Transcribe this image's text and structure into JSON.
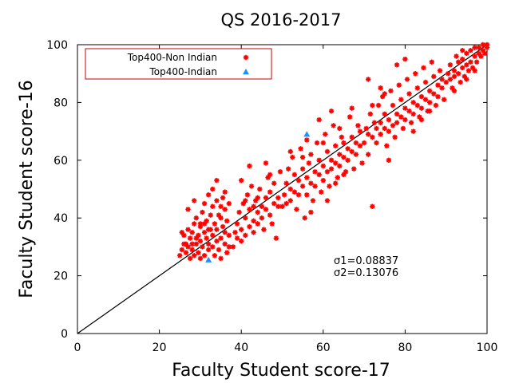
{
  "chart_data": {
    "type": "scatter",
    "title": "QS 2016-2017",
    "xlabel": "Faculty Student score-17",
    "ylabel": "Faculty Student score-16",
    "xlim": [
      0,
      100
    ],
    "ylim": [
      0,
      100
    ],
    "xticks": [
      0,
      20,
      40,
      60,
      80,
      100
    ],
    "yticks": [
      0,
      20,
      40,
      60,
      80,
      100
    ],
    "grid": false,
    "legend_position": "top-left",
    "reference_line": {
      "from": [
        0,
        0
      ],
      "to": [
        100,
        100
      ],
      "color": "#000000"
    },
    "annotations": [
      "σ1=0.08837",
      "σ2=0.13076"
    ],
    "series": [
      {
        "name": "Top400-Non Indian",
        "marker": "star",
        "color": "#ff0000",
        "points": [
          [
            25,
            27
          ],
          [
            25.5,
            29
          ],
          [
            26,
            31
          ],
          [
            26,
            34
          ],
          [
            26.5,
            28
          ],
          [
            27,
            30
          ],
          [
            27,
            36
          ],
          [
            27.5,
            26
          ],
          [
            27.5,
            33
          ],
          [
            28,
            35
          ],
          [
            28,
            29
          ],
          [
            28.5,
            38
          ],
          [
            28.5,
            27
          ],
          [
            29,
            31
          ],
          [
            29,
            40
          ],
          [
            29.5,
            34
          ],
          [
            29.5,
            28
          ],
          [
            30,
            32
          ],
          [
            30,
            26
          ],
          [
            30,
            37
          ],
          [
            30.5,
            42
          ],
          [
            30.5,
            30
          ],
          [
            31,
            35
          ],
          [
            31,
            27
          ],
          [
            31,
            45
          ],
          [
            31.5,
            33
          ],
          [
            31.5,
            39
          ],
          [
            32,
            29
          ],
          [
            32,
            31
          ],
          [
            32,
            48
          ],
          [
            32.5,
            36
          ],
          [
            32.5,
            41
          ],
          [
            33,
            30
          ],
          [
            33,
            34
          ],
          [
            33,
            44
          ],
          [
            33.5,
            27
          ],
          [
            33.5,
            38
          ],
          [
            34,
            32
          ],
          [
            34,
            36
          ],
          [
            34,
            46
          ],
          [
            34.5,
            29
          ],
          [
            34.5,
            41
          ],
          [
            35,
            33
          ],
          [
            35,
            40
          ],
          [
            35,
            26
          ],
          [
            35.5,
            37
          ],
          [
            35.5,
            47
          ],
          [
            36,
            31
          ],
          [
            36,
            35
          ],
          [
            36,
            43
          ],
          [
            36.5,
            28
          ],
          [
            36.5,
            39
          ],
          [
            37,
            34
          ],
          [
            37,
            45
          ],
          [
            37,
            30
          ],
          [
            27,
            43
          ],
          [
            28.5,
            46
          ],
          [
            33,
            50
          ],
          [
            34,
            53
          ],
          [
            30,
            38
          ],
          [
            26.5,
            31
          ],
          [
            25.5,
            35
          ],
          [
            32,
            36
          ],
          [
            31,
            38
          ],
          [
            29,
            33
          ],
          [
            28,
            31
          ],
          [
            36,
            49
          ],
          [
            35,
            44
          ],
          [
            38,
            30
          ],
          [
            38.5,
            35
          ],
          [
            39,
            38
          ],
          [
            39,
            33
          ],
          [
            39.5,
            42
          ],
          [
            40,
            36
          ],
          [
            40,
            32
          ],
          [
            40.5,
            45
          ],
          [
            41,
            40
          ],
          [
            41,
            34
          ],
          [
            41.5,
            48
          ],
          [
            42,
            37
          ],
          [
            42,
            43
          ],
          [
            42.5,
            51
          ],
          [
            43,
            39
          ],
          [
            43,
            35
          ],
          [
            43.5,
            46
          ],
          [
            44,
            42
          ],
          [
            44,
            38
          ],
          [
            44.5,
            50
          ],
          [
            45,
            44
          ],
          [
            45,
            40
          ],
          [
            45.5,
            36
          ],
          [
            46,
            47
          ],
          [
            46,
            43
          ],
          [
            46.5,
            54
          ],
          [
            47,
            41
          ],
          [
            47,
            49
          ],
          [
            47.5,
            38
          ],
          [
            48,
            45
          ],
          [
            48,
            52
          ],
          [
            48.5,
            33
          ],
          [
            49,
            47
          ],
          [
            49,
            44
          ],
          [
            49.5,
            56
          ],
          [
            40,
            53
          ],
          [
            42,
            58
          ],
          [
            43,
            44
          ],
          [
            41,
            46
          ],
          [
            46,
            59
          ],
          [
            44,
            47
          ],
          [
            47,
            55
          ],
          [
            50,
            44
          ],
          [
            50.5,
            48
          ],
          [
            51,
            52
          ],
          [
            51,
            45
          ],
          [
            51.5,
            57
          ],
          [
            52,
            50
          ],
          [
            52,
            46
          ],
          [
            52.5,
            61
          ],
          [
            53,
            49
          ],
          [
            53,
            55
          ],
          [
            53.5,
            43
          ],
          [
            54,
            53
          ],
          [
            54,
            48
          ],
          [
            54.5,
            64
          ],
          [
            55,
            51
          ],
          [
            55,
            57
          ],
          [
            55.5,
            40
          ],
          [
            56,
            54
          ],
          [
            56,
            48
          ],
          [
            56.5,
            59
          ],
          [
            57,
            52
          ],
          [
            57,
            62
          ],
          [
            57.5,
            46
          ],
          [
            58,
            56
          ],
          [
            58,
            51
          ],
          [
            58.5,
            66
          ],
          [
            59,
            55
          ],
          [
            59,
            60
          ],
          [
            59.5,
            49
          ],
          [
            60,
            58
          ],
          [
            60,
            53
          ],
          [
            60.5,
            69
          ],
          [
            61,
            56
          ],
          [
            61,
            63
          ],
          [
            61.5,
            51
          ],
          [
            62,
            60
          ],
          [
            62,
            57
          ],
          [
            62.5,
            72
          ],
          [
            63,
            59
          ],
          [
            63,
            65
          ],
          [
            63.5,
            54
          ],
          [
            64,
            62
          ],
          [
            64,
            58
          ],
          [
            64.5,
            68
          ],
          [
            65,
            61
          ],
          [
            65,
            66
          ],
          [
            65.5,
            56
          ],
          [
            66,
            64
          ],
          [
            66,
            60
          ],
          [
            66.5,
            75
          ],
          [
            67,
            63
          ],
          [
            67,
            68
          ],
          [
            67.5,
            57
          ],
          [
            68,
            66
          ],
          [
            68,
            62
          ],
          [
            68.5,
            72
          ],
          [
            69,
            65
          ],
          [
            69,
            70
          ],
          [
            69.5,
            59
          ],
          [
            52,
            63
          ],
          [
            56,
            67
          ],
          [
            59,
            74
          ],
          [
            62,
            77
          ],
          [
            57,
            42
          ],
          [
            61,
            46
          ],
          [
            63,
            52
          ],
          [
            65,
            55
          ],
          [
            55,
            61
          ],
          [
            60,
            66
          ],
          [
            67,
            78
          ],
          [
            64,
            71
          ],
          [
            70,
            66
          ],
          [
            70.5,
            71
          ],
          [
            71,
            69
          ],
          [
            71,
            62
          ],
          [
            71.5,
            76
          ],
          [
            72,
            68
          ],
          [
            72,
            44
          ],
          [
            72.5,
            73
          ],
          [
            73,
            71
          ],
          [
            73,
            66
          ],
          [
            73.5,
            79
          ],
          [
            74,
            73
          ],
          [
            74,
            69
          ],
          [
            74.5,
            82
          ],
          [
            75,
            71
          ],
          [
            75,
            76
          ],
          [
            75.5,
            65
          ],
          [
            76,
            74
          ],
          [
            76,
            70
          ],
          [
            76.5,
            84
          ],
          [
            77,
            72
          ],
          [
            77,
            79
          ],
          [
            77.5,
            68
          ],
          [
            78,
            76
          ],
          [
            78,
            73
          ],
          [
            78.5,
            86
          ],
          [
            79,
            75
          ],
          [
            79,
            81
          ],
          [
            79.5,
            71
          ],
          [
            80,
            78
          ],
          [
            80,
            74
          ],
          [
            80.5,
            88
          ],
          [
            81,
            77
          ],
          [
            81,
            83
          ],
          [
            81.5,
            73
          ],
          [
            82,
            80
          ],
          [
            82,
            76
          ],
          [
            82.5,
            90
          ],
          [
            83,
            79
          ],
          [
            83,
            85
          ],
          [
            83.5,
            75
          ],
          [
            84,
            82
          ],
          [
            84,
            78
          ],
          [
            84.5,
            92
          ],
          [
            85,
            81
          ],
          [
            85,
            87
          ],
          [
            85.5,
            77
          ],
          [
            86,
            84
          ],
          [
            86,
            80
          ],
          [
            86.5,
            94
          ],
          [
            87,
            83
          ],
          [
            87,
            89
          ],
          [
            87.5,
            79
          ],
          [
            88,
            86
          ],
          [
            88,
            82
          ],
          [
            88.5,
            91
          ],
          [
            89,
            85
          ],
          [
            89,
            88
          ],
          [
            89.5,
            81
          ],
          [
            71,
            88
          ],
          [
            74,
            85
          ],
          [
            78,
            93
          ],
          [
            80,
            95
          ],
          [
            76,
            60
          ],
          [
            82,
            70
          ],
          [
            84,
            74
          ],
          [
            86,
            77
          ],
          [
            72,
            79
          ],
          [
            75,
            83
          ],
          [
            90,
            87
          ],
          [
            90.5,
            90
          ],
          [
            91,
            88
          ],
          [
            91,
            93
          ],
          [
            91.5,
            85
          ],
          [
            92,
            91
          ],
          [
            92,
            89
          ],
          [
            92.5,
            96
          ],
          [
            93,
            90
          ],
          [
            93,
            94
          ],
          [
            93.5,
            87
          ],
          [
            94,
            92
          ],
          [
            94,
            95
          ],
          [
            94.5,
            89
          ],
          [
            95,
            93
          ],
          [
            95,
            97
          ],
          [
            95.5,
            91
          ],
          [
            96,
            94
          ],
          [
            96,
            98
          ],
          [
            96.5,
            92
          ],
          [
            97,
            96
          ],
          [
            97,
            99
          ],
          [
            97.5,
            94
          ],
          [
            98,
            97
          ],
          [
            98,
            99
          ],
          [
            98.5,
            96
          ],
          [
            99,
            98
          ],
          [
            99,
            100
          ],
          [
            99.5,
            97
          ],
          [
            100,
            99
          ],
          [
            100,
            100
          ],
          [
            92,
            84
          ],
          [
            95,
            88
          ],
          [
            97,
            91
          ],
          [
            94,
            98
          ]
        ]
      },
      {
        "name": "Top400-Indian",
        "marker": "triangle",
        "color": "#1e90ff",
        "points": [
          [
            32,
            25.5
          ],
          [
            56,
            69
          ]
        ]
      }
    ]
  }
}
